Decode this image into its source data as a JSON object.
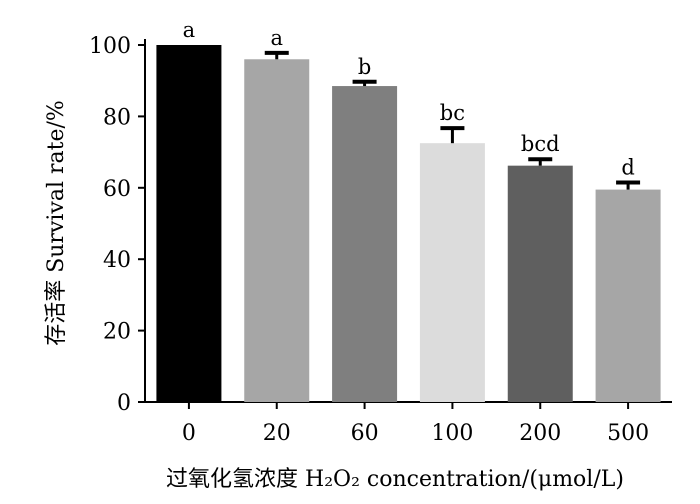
{
  "chart_data": {
    "type": "bar",
    "categories": [
      "0",
      "20",
      "60",
      "100",
      "200",
      "500"
    ],
    "values": [
      100,
      96,
      88.5,
      72.5,
      66.2,
      59.5
    ],
    "errors": [
      0,
      1.8,
      1.2,
      4.2,
      1.8,
      2.0
    ],
    "significance": [
      "a",
      "a",
      "b",
      "bc",
      "bcd",
      "d"
    ],
    "bar_colors": [
      "#000000",
      "#a6a6a6",
      "#7f7f7f",
      "#dcdcdc",
      "#5f5f5f",
      "#a6a6a6"
    ],
    "xlabel": "过氧化氢浓度 H₂O₂ concentration/(μmol/L)",
    "ylabel": "存活率 Survival rate/%",
    "ylim": [
      0,
      100
    ],
    "yticks": [
      "0",
      "20",
      "40",
      "60",
      "80",
      "100"
    ],
    "grid": false
  }
}
